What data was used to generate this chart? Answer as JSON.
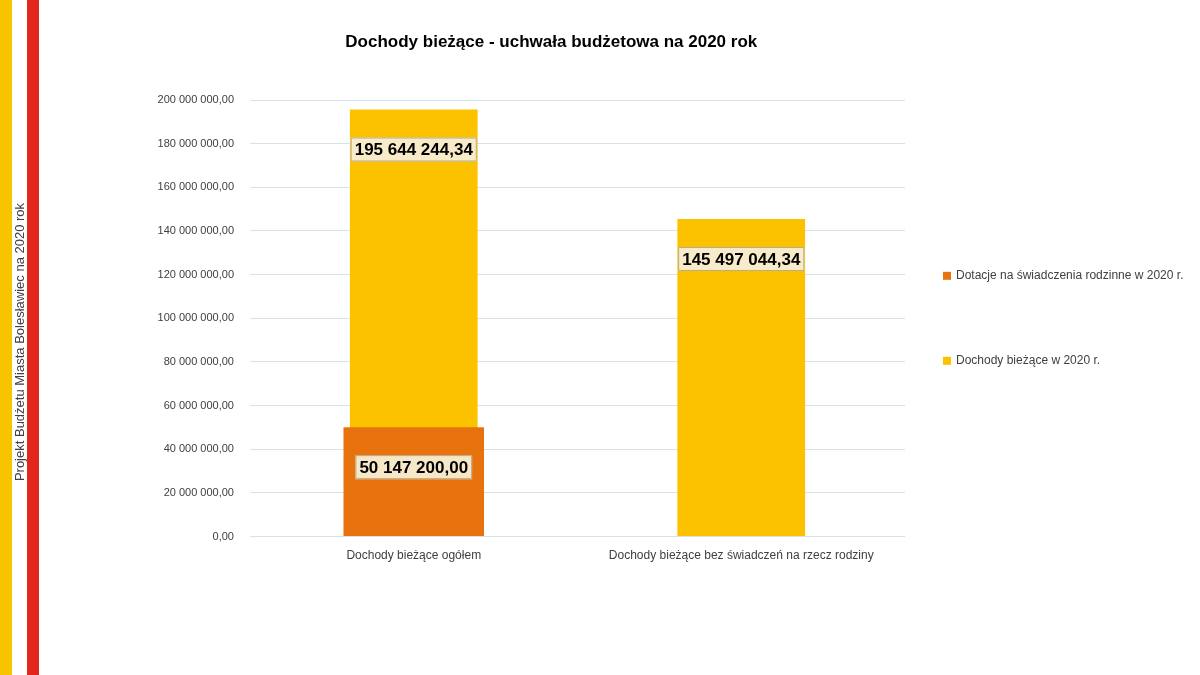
{
  "chart_data": {
    "type": "bar",
    "title": "Dochody bieżące - uchwała budżetowa na 2020 rok",
    "categories": [
      "Dochody bieżące ogółem",
      "Dochody bieżące bez świadczeń na rzecz rodziny"
    ],
    "series": [
      {
        "name": "Dotacje na świadczenia rodzinne w 2020 r.",
        "color": "#e8730e",
        "values": [
          50147200.0,
          null
        ],
        "value_labels": [
          "50 147 200,00",
          null
        ]
      },
      {
        "name": "Dochody bieżące w 2020 r.",
        "color": "#fcc200",
        "values": [
          195644244.34,
          145497044.34
        ],
        "value_labels": [
          "195 644 244,34",
          "145 497 044,34"
        ]
      }
    ],
    "ylim": [
      0,
      200000000
    ],
    "yticks": [
      {
        "value": 0,
        "label": "0,00"
      },
      {
        "value": 20000000,
        "label": "20 000 000,00"
      },
      {
        "value": 40000000,
        "label": "40 000 000,00"
      },
      {
        "value": 60000000,
        "label": "60 000 000,00"
      },
      {
        "value": 80000000,
        "label": "80 000 000,00"
      },
      {
        "value": 100000000,
        "label": "100 000 000,00"
      },
      {
        "value": 120000000,
        "label": "120 000 000,00"
      },
      {
        "value": 140000000,
        "label": "140 000 000,00"
      },
      {
        "value": 160000000,
        "label": "160 000 000,00"
      },
      {
        "value": 180000000,
        "label": "180 000 000,00"
      },
      {
        "value": 200000000,
        "label": "200 000 000,00"
      }
    ],
    "grid": "y",
    "legend": "right",
    "annotations": [
      "Projekt Budżetu Miasta Bolesławiec na 2020 rok"
    ]
  }
}
